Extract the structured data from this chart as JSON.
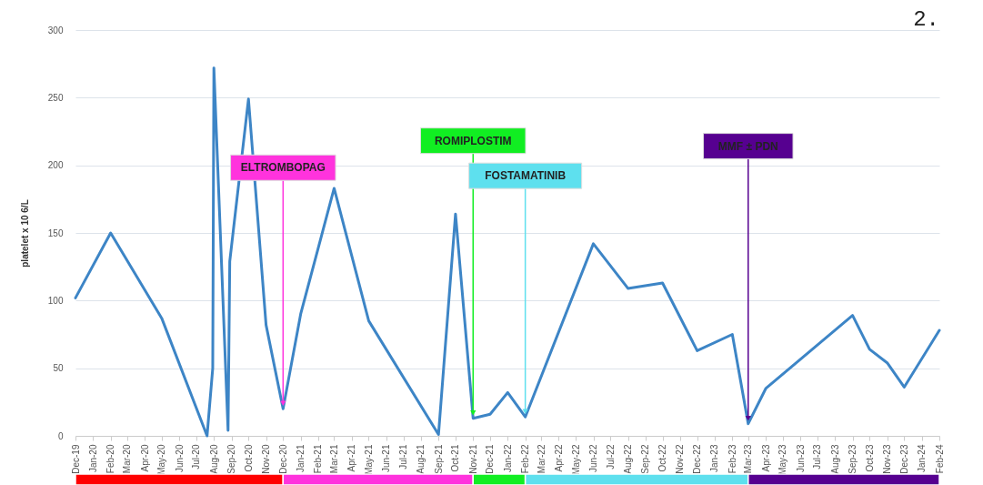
{
  "chart_data": {
    "type": "line",
    "ylabel": "platelet x 10 6/L",
    "x": [
      "2019-12",
      "2020-02",
      "2020-05",
      "2020-07-20",
      "2020-07-30",
      "2020-08-01",
      "2020-08-26",
      "2020-08-29",
      "2020-10",
      "2020-11",
      "2020-12",
      "2021-01",
      "2021-03",
      "2021-05",
      "2021-09",
      "2021-10",
      "2021-11",
      "2021-12",
      "2022-01",
      "2022-02",
      "2022-06",
      "2022-08",
      "2022-10",
      "2022-12",
      "2023-02",
      "2023-03",
      "2023-04",
      "2023-09",
      "2023-10",
      "2023-11",
      "2023-12",
      "2024-02"
    ],
    "series": [
      {
        "color": "#3d85c6",
        "values": [
          102,
          150,
          87,
          0,
          50,
          272,
          4,
          129,
          249,
          82,
          20,
          90,
          183,
          85,
          1,
          164,
          13,
          16,
          32,
          14,
          142,
          109,
          113,
          63,
          75,
          9,
          35,
          89,
          64,
          54,
          36,
          78
        ]
      }
    ],
    "xlim": [
      "2019-12",
      "2024-02"
    ],
    "xticks": [
      {
        "value": "2019-12",
        "label": "Dec-19"
      },
      {
        "value": "2020-01",
        "label": "Jan-20"
      },
      {
        "value": "2020-02",
        "label": "Feb-20"
      },
      {
        "value": "2020-03",
        "label": "Mar-20"
      },
      {
        "value": "2020-04",
        "label": "Apr-20"
      },
      {
        "value": "2020-05",
        "label": "May-20"
      },
      {
        "value": "2020-06",
        "label": "Jun-20"
      },
      {
        "value": "2020-07",
        "label": "Jul-20"
      },
      {
        "value": "2020-08",
        "label": "Aug-20"
      },
      {
        "value": "2020-09",
        "label": "Sep-20"
      },
      {
        "value": "2020-10",
        "label": "Oct-20"
      },
      {
        "value": "2020-11",
        "label": "Nov-20"
      },
      {
        "value": "2020-12",
        "label": "Dec-20"
      },
      {
        "value": "2021-01",
        "label": "Jan-21"
      },
      {
        "value": "2021-02",
        "label": "Feb-21"
      },
      {
        "value": "2021-03",
        "label": "Mar-21"
      },
      {
        "value": "2021-04",
        "label": "Apr-21"
      },
      {
        "value": "2021-05",
        "label": "May-21"
      },
      {
        "value": "2021-06",
        "label": "Jun-21"
      },
      {
        "value": "2021-07",
        "label": "Jul-21"
      },
      {
        "value": "2021-08",
        "label": "Aug-21"
      },
      {
        "value": "2021-09",
        "label": "Sep-21"
      },
      {
        "value": "2021-10",
        "label": "Oct-21"
      },
      {
        "value": "2021-11",
        "label": "Nov-21"
      },
      {
        "value": "2021-12",
        "label": "Dec-21"
      },
      {
        "value": "2022-01",
        "label": "Jan-22"
      },
      {
        "value": "2022-02",
        "label": "Feb-22"
      },
      {
        "value": "2022-03",
        "label": "Mar-22"
      },
      {
        "value": "2022-04",
        "label": "Apr-22"
      },
      {
        "value": "2022-05",
        "label": "May-22"
      },
      {
        "value": "2022-06",
        "label": "Jun-22"
      },
      {
        "value": "2022-07",
        "label": "Jul-22"
      },
      {
        "value": "2022-08",
        "label": "Aug-22"
      },
      {
        "value": "2022-09",
        "label": "Sep-22"
      },
      {
        "value": "2022-10",
        "label": "Oct-22"
      },
      {
        "value": "2022-11",
        "label": "Nov-22"
      },
      {
        "value": "2022-12",
        "label": "Dec-22"
      },
      {
        "value": "2023-01",
        "label": "Jan-23"
      },
      {
        "value": "2023-02",
        "label": "Feb-23"
      },
      {
        "value": "2023-03",
        "label": "Mar-23"
      },
      {
        "value": "2023-04",
        "label": "Apr-23"
      },
      {
        "value": "2023-05",
        "label": "May-23"
      },
      {
        "value": "2023-06",
        "label": "Jun-23"
      },
      {
        "value": "2023-07",
        "label": "Jul-23"
      },
      {
        "value": "2023-08",
        "label": "Aug-23"
      },
      {
        "value": "2023-09",
        "label": "Sep-23"
      },
      {
        "value": "2023-10",
        "label": "Oct-23"
      },
      {
        "value": "2023-11",
        "label": "Nov-23"
      },
      {
        "value": "2023-12",
        "label": "Dec-23"
      },
      {
        "value": "2024-01",
        "label": "Jan-24"
      },
      {
        "value": "2024-02",
        "label": "Feb-24"
      }
    ],
    "ylim": [
      0,
      300
    ],
    "yticks": [
      0,
      50,
      100,
      150,
      200,
      250,
      300
    ],
    "grid": "y",
    "marker": "none",
    "line_style": "solid",
    "annotations": [
      {
        "text": "ELTROMBOPAG",
        "x": "2020-12",
        "y": 20
      },
      {
        "text": "ROMIPLOSTIM",
        "x": "2021-11",
        "y": 13
      },
      {
        "text": "FOSTAMATINIB",
        "x": "2022-02",
        "y": 14
      },
      {
        "text": "MMF ± PDN",
        "x": "2023-03",
        "y": 9
      },
      "2."
    ]
  }
}
